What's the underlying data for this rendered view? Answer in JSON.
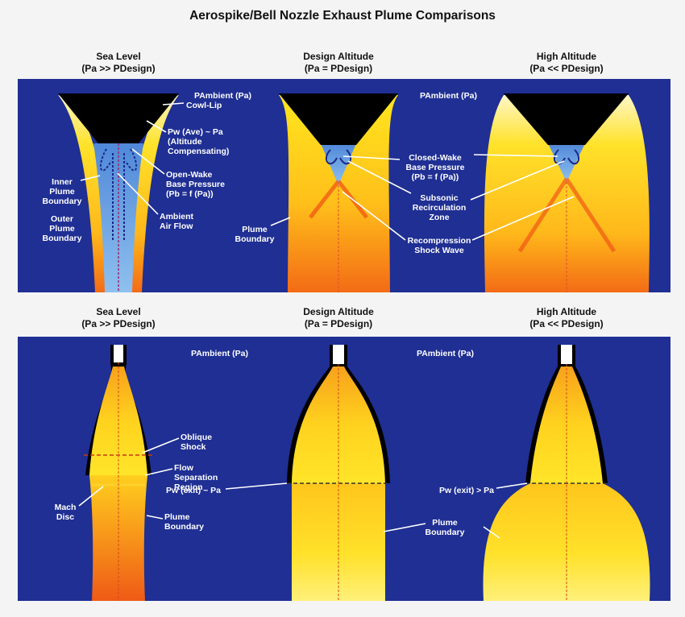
{
  "title": "Aerospike/Bell Nozzle Exhaust Plume Comparisons",
  "colors": {
    "background": "#f4f4f4",
    "panel_blue": "#1f2f93",
    "nozzle_black": "#000000",
    "plume_yellow": "#ffe11c",
    "plume_orange": "#f47b17",
    "wake_blue": "#6ea6e4",
    "label_white": "#ffffff"
  },
  "top_panel": {
    "columns": [
      {
        "heading": "Sea Level",
        "subheading": "(Pa >> PDesign)"
      },
      {
        "heading": "Design Altitude",
        "subheading": "(Pa = PDesign)"
      },
      {
        "heading": "High Altitude",
        "subheading": "(Pa << PDesign)"
      }
    ],
    "ambient_left": "PAmbient (Pa)",
    "ambient_right": "PAmbient (Pa)",
    "cowl_lip": "Cowl-Lip",
    "pw_ave": [
      "Pw (Ave) ~ Pa",
      "(Altitude",
      "Compensating)"
    ],
    "open_wake": [
      "Open-Wake",
      "Base Pressure",
      "(Pb = f (Pa))"
    ],
    "inner_plume": [
      "Inner",
      "Plume",
      "Boundary"
    ],
    "outer_plume": [
      "Outer",
      "Plume",
      "Boundary"
    ],
    "ambient_air": [
      "Ambient",
      "Air Flow"
    ],
    "plume_boundary": [
      "Plume",
      "Boundary"
    ],
    "closed_wake": [
      "Closed-Wake",
      "Base Pressure",
      "(Pb = f (Pa))"
    ],
    "subsonic": [
      "Subsonic",
      "Recirculation",
      "Zone"
    ],
    "recompression": [
      "Recompression",
      "Shock Wave"
    ]
  },
  "bottom_panel": {
    "columns": [
      {
        "heading": "Sea Level",
        "subheading": "(Pa >> PDesign)"
      },
      {
        "heading": "Design Altitude",
        "subheading": "(Pa = PDesign)"
      },
      {
        "heading": "High Altitude",
        "subheading": "(Pa << PDesign)"
      }
    ],
    "ambient_left": "PAmbient (Pa)",
    "ambient_right": "PAmbient (Pa)",
    "oblique_shock": [
      "Oblique",
      "Shock"
    ],
    "flow_separation": [
      "Flow",
      "Separation",
      "Region"
    ],
    "mach_disc": [
      "Mach",
      "Disc"
    ],
    "plume_boundary_left": [
      "Plume",
      "Boundary"
    ],
    "pw_exit_equal": "Pw (exit) ~ Pa",
    "plume_boundary_mid": [
      "Plume",
      "Boundary"
    ],
    "pw_exit_greater": "Pw (exit) > Pa"
  }
}
